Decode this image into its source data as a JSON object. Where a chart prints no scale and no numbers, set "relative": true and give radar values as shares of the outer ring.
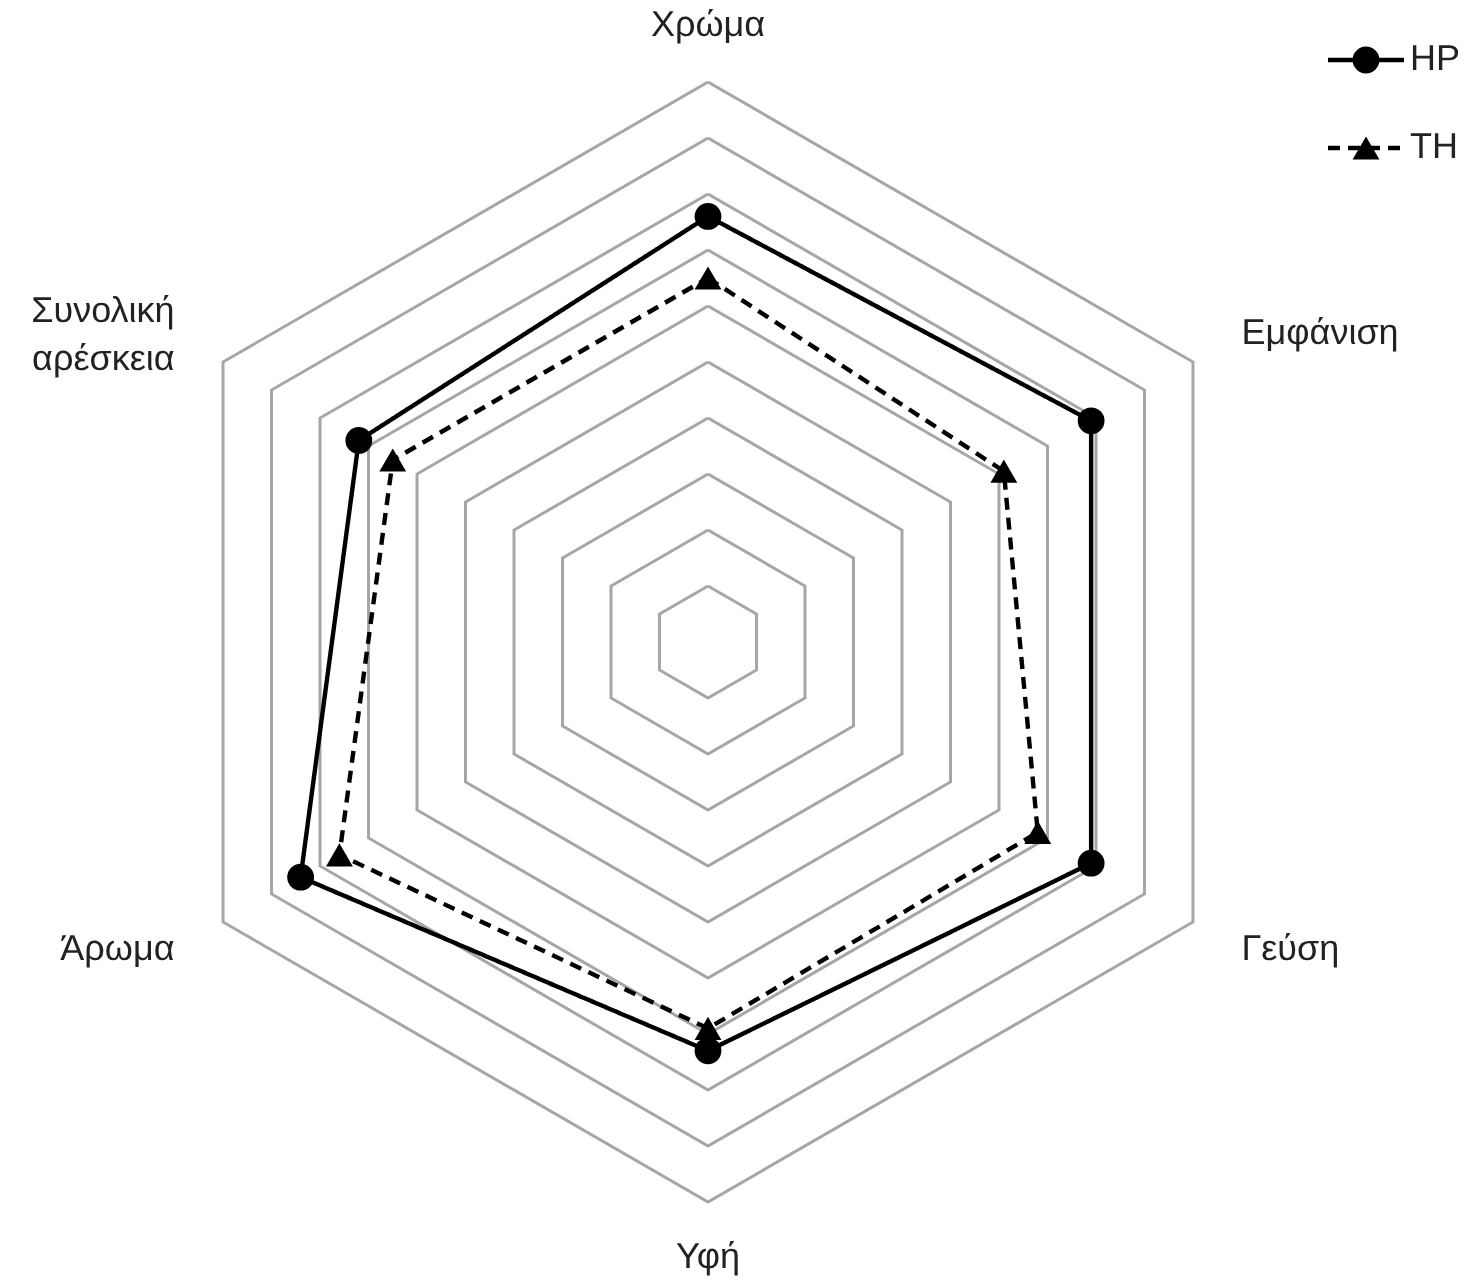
{
  "chart_data": {
    "type": "radar",
    "relative": true,
    "categories": [
      "Χρώμα",
      "Εμφάνιση",
      "Γεύση",
      "Υφή",
      "Άρωμα",
      "Συνολική αρέσκεια"
    ],
    "series": [
      {
        "name": "HP",
        "color": "#000000",
        "marker": "circle",
        "line_style": "solid",
        "values": [
          0.76,
          0.79,
          0.79,
          0.73,
          0.84,
          0.72
        ]
      },
      {
        "name": "TH",
        "color": "#000000",
        "marker": "triangle",
        "line_style": "dashed",
        "values": [
          0.65,
          0.61,
          0.68,
          0.69,
          0.76,
          0.65
        ]
      }
    ],
    "grid": true,
    "legend": "top right"
  }
}
